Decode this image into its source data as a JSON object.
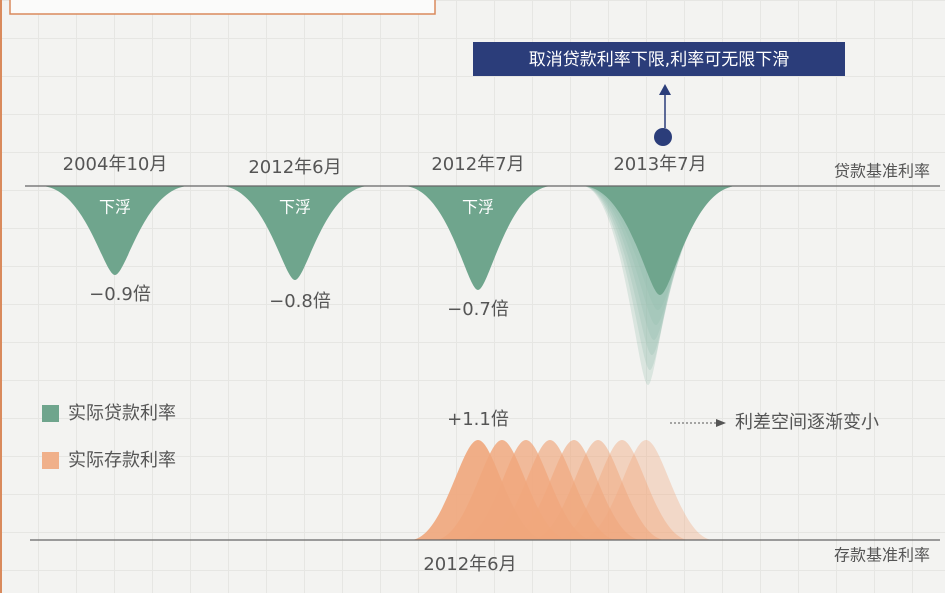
{
  "annotation": "取消贷款利率下限,利率可无限下滑",
  "loan_baseline": "贷款基准利率",
  "deposit_baseline": "存款基准利率",
  "events": [
    {
      "date": "2004年10月",
      "label": "下浮",
      "value": "−0.9倍"
    },
    {
      "date": "2012年6月",
      "label": "下浮",
      "value": "−0.8倍"
    },
    {
      "date": "2012年7月",
      "label": "下浮",
      "value": "−0.7倍"
    },
    {
      "date": "2013年7月"
    }
  ],
  "deposit_event": {
    "date": "2012年6月",
    "value": "+1.1倍"
  },
  "spread_note": "利差空间逐渐变小",
  "legend": [
    "实际贷款利率",
    "实际存款利率"
  ]
}
